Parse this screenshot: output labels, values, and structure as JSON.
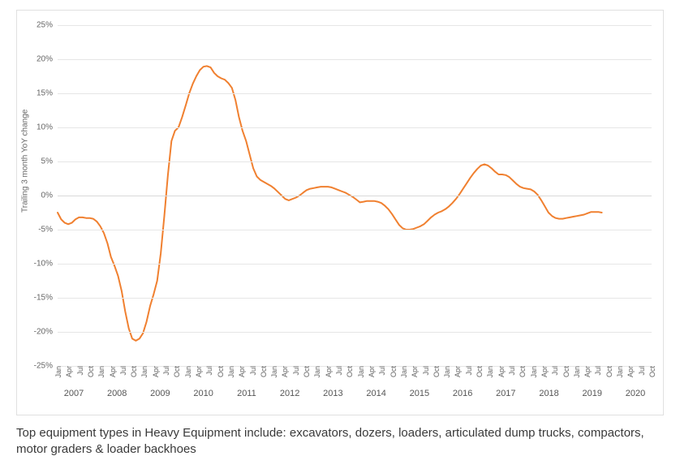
{
  "chart": {
    "type": "line",
    "y_axis_title": "Trailing 3 month YoY change",
    "ylim": [
      -25,
      25
    ],
    "ytick_step": 5,
    "ytick_suffix": "%",
    "zero_line_color": "#d8d8d8",
    "grid_color": "#e6e6e6",
    "border_color": "#e0e0e0",
    "background_color": "#ffffff",
    "line_color": "#f08030",
    "line_width": 2,
    "label_color": "#666666",
    "label_fontsize": 10,
    "x_tick_fontsize": 9,
    "year_label_fontsize": 11,
    "years": [
      2007,
      2008,
      2009,
      2010,
      2011,
      2012,
      2013,
      2014,
      2015,
      2016,
      2017,
      2018,
      2019,
      2020
    ],
    "month_ticks": [
      "Jan",
      "Apr",
      "Jul",
      "Oct"
    ],
    "values": [
      -2.5,
      -3.5,
      -4.0,
      -4.2,
      -4.0,
      -3.5,
      -3.2,
      -3.2,
      -3.3,
      -3.3,
      -3.4,
      -3.8,
      -4.5,
      -5.5,
      -7.0,
      -9.0,
      -10.3,
      -11.8,
      -14.0,
      -17.0,
      -19.5,
      -21.0,
      -21.3,
      -21.0,
      -20.2,
      -18.5,
      -16.2,
      -14.5,
      -12.5,
      -8.5,
      -3.0,
      3.0,
      8.0,
      9.5,
      10.0,
      11.5,
      13.2,
      15.0,
      16.4,
      17.5,
      18.4,
      18.9,
      19.0,
      18.8,
      18.0,
      17.5,
      17.2,
      17.0,
      16.5,
      15.8,
      14.0,
      11.5,
      9.5,
      8.0,
      6.0,
      4.0,
      2.8,
      2.3,
      2.0,
      1.7,
      1.4,
      1.0,
      0.5,
      0.0,
      -0.5,
      -0.7,
      -0.5,
      -0.3,
      0.0,
      0.4,
      0.8,
      1.0,
      1.1,
      1.2,
      1.3,
      1.3,
      1.3,
      1.2,
      1.0,
      0.8,
      0.6,
      0.4,
      0.1,
      -0.2,
      -0.6,
      -1.0,
      -0.9,
      -0.8,
      -0.8,
      -0.8,
      -0.9,
      -1.1,
      -1.5,
      -2.0,
      -2.7,
      -3.5,
      -4.3,
      -4.8,
      -5.0,
      -5.0,
      -4.9,
      -4.7,
      -4.5,
      -4.2,
      -3.7,
      -3.2,
      -2.8,
      -2.5,
      -2.3,
      -2.0,
      -1.6,
      -1.1,
      -0.5,
      0.2,
      1.0,
      1.8,
      2.6,
      3.3,
      3.9,
      4.4,
      4.6,
      4.4,
      4.0,
      3.5,
      3.1,
      3.1,
      3.0,
      2.7,
      2.2,
      1.7,
      1.3,
      1.1,
      1.0,
      0.9,
      0.6,
      0.1,
      -0.7,
      -1.6,
      -2.5,
      -3.0,
      -3.3,
      -3.4,
      -3.4,
      -3.3,
      -3.2,
      -3.1,
      -3.0,
      -2.9,
      -2.8,
      -2.6,
      -2.4,
      -2.4,
      -2.4,
      -2.5
    ]
  },
  "caption": "Top equipment types in Heavy Equipment include: excavators, dozers, loaders, articulated dump trucks, compactors, motor graders & loader backhoes"
}
